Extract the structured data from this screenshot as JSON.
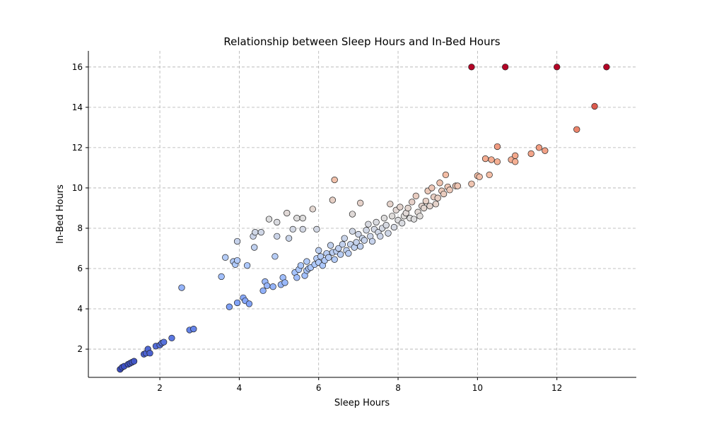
{
  "chart_data": {
    "type": "scatter",
    "title": "Relationship between Sleep Hours and In-Bed Hours",
    "xlabel": "Sleep Hours",
    "ylabel": "In-Bed Hours",
    "xlim": [
      0.2,
      14.0
    ],
    "ylim": [
      0.6,
      16.8
    ],
    "xticks": [
      2,
      4,
      6,
      8,
      10,
      12
    ],
    "yticks": [
      2,
      4,
      6,
      8,
      10,
      12,
      14,
      16
    ],
    "grid": true,
    "colormap": "coolwarm",
    "color_by": "y",
    "colormap_stops": [
      "#3b4cc0",
      "#6f92f3",
      "#aac7fd",
      "#dddcdc",
      "#f7b89c",
      "#e7745b",
      "#b40426"
    ],
    "points": [
      [
        1.0,
        1.0
      ],
      [
        1.05,
        1.1
      ],
      [
        1.1,
        1.15
      ],
      [
        1.2,
        1.25
      ],
      [
        1.25,
        1.3
      ],
      [
        1.3,
        1.35
      ],
      [
        1.35,
        1.4
      ],
      [
        1.6,
        1.75
      ],
      [
        1.65,
        1.8
      ],
      [
        1.7,
        2.0
      ],
      [
        1.75,
        1.8
      ],
      [
        1.9,
        2.15
      ],
      [
        2.0,
        2.2
      ],
      [
        2.05,
        2.3
      ],
      [
        2.1,
        2.35
      ],
      [
        2.3,
        2.55
      ],
      [
        2.55,
        5.05
      ],
      [
        2.75,
        2.95
      ],
      [
        2.85,
        3.0
      ],
      [
        3.55,
        5.6
      ],
      [
        3.65,
        6.55
      ],
      [
        3.75,
        4.1
      ],
      [
        3.85,
        6.35
      ],
      [
        3.9,
        6.2
      ],
      [
        3.95,
        7.35
      ],
      [
        3.95,
        6.4
      ],
      [
        3.95,
        4.3
      ],
      [
        4.1,
        4.55
      ],
      [
        4.15,
        4.4
      ],
      [
        4.2,
        6.15
      ],
      [
        4.25,
        4.25
      ],
      [
        4.35,
        7.6
      ],
      [
        4.38,
        7.05
      ],
      [
        4.4,
        7.8
      ],
      [
        4.55,
        7.8
      ],
      [
        4.6,
        4.9
      ],
      [
        4.65,
        5.35
      ],
      [
        4.7,
        5.15
      ],
      [
        4.75,
        8.45
      ],
      [
        4.85,
        5.1
      ],
      [
        4.9,
        6.6
      ],
      [
        4.95,
        8.3
      ],
      [
        4.95,
        7.6
      ],
      [
        5.05,
        5.2
      ],
      [
        5.1,
        5.55
      ],
      [
        5.15,
        5.3
      ],
      [
        5.2,
        8.75
      ],
      [
        5.25,
        7.5
      ],
      [
        5.35,
        7.95
      ],
      [
        5.4,
        5.8
      ],
      [
        5.45,
        5.55
      ],
      [
        5.45,
        8.5
      ],
      [
        5.5,
        5.95
      ],
      [
        5.55,
        6.15
      ],
      [
        5.6,
        8.5
      ],
      [
        5.6,
        7.95
      ],
      [
        5.65,
        5.65
      ],
      [
        5.7,
        5.9
      ],
      [
        5.7,
        6.35
      ],
      [
        5.75,
        6.0
      ],
      [
        5.8,
        6.05
      ],
      [
        5.85,
        8.95
      ],
      [
        5.9,
        6.2
      ],
      [
        5.95,
        6.5
      ],
      [
        5.95,
        7.95
      ],
      [
        6.0,
        6.9
      ],
      [
        6.0,
        6.3
      ],
      [
        6.05,
        6.6
      ],
      [
        6.1,
        6.15
      ],
      [
        6.15,
        6.4
      ],
      [
        6.2,
        6.75
      ],
      [
        6.25,
        6.55
      ],
      [
        6.3,
        7.15
      ],
      [
        6.35,
        9.4
      ],
      [
        6.35,
        6.8
      ],
      [
        6.4,
        10.4
      ],
      [
        6.4,
        6.45
      ],
      [
        6.45,
        6.85
      ],
      [
        6.5,
        7.0
      ],
      [
        6.55,
        6.7
      ],
      [
        6.6,
        7.2
      ],
      [
        6.65,
        7.5
      ],
      [
        6.7,
        6.9
      ],
      [
        6.75,
        6.75
      ],
      [
        6.8,
        7.2
      ],
      [
        6.85,
        7.85
      ],
      [
        6.85,
        8.7
      ],
      [
        6.9,
        7.05
      ],
      [
        6.95,
        7.3
      ],
      [
        7.0,
        7.7
      ],
      [
        7.05,
        9.25
      ],
      [
        7.05,
        7.1
      ],
      [
        7.1,
        7.5
      ],
      [
        7.15,
        7.4
      ],
      [
        7.2,
        7.9
      ],
      [
        7.25,
        8.2
      ],
      [
        7.3,
        7.6
      ],
      [
        7.35,
        7.35
      ],
      [
        7.4,
        7.95
      ],
      [
        7.45,
        8.3
      ],
      [
        7.5,
        7.8
      ],
      [
        7.55,
        7.6
      ],
      [
        7.6,
        8.0
      ],
      [
        7.65,
        8.5
      ],
      [
        7.7,
        8.15
      ],
      [
        7.75,
        7.75
      ],
      [
        7.8,
        9.2
      ],
      [
        7.85,
        8.6
      ],
      [
        7.9,
        8.05
      ],
      [
        7.95,
        8.9
      ],
      [
        8.0,
        8.4
      ],
      [
        8.05,
        9.05
      ],
      [
        8.1,
        8.25
      ],
      [
        8.15,
        8.6
      ],
      [
        8.2,
        8.75
      ],
      [
        8.25,
        9.0
      ],
      [
        8.3,
        8.5
      ],
      [
        8.35,
        9.3
      ],
      [
        8.4,
        8.45
      ],
      [
        8.45,
        9.6
      ],
      [
        8.5,
        8.8
      ],
      [
        8.55,
        8.6
      ],
      [
        8.6,
        9.1
      ],
      [
        8.65,
        9.0
      ],
      [
        8.7,
        9.35
      ],
      [
        8.75,
        9.85
      ],
      [
        8.8,
        9.1
      ],
      [
        8.85,
        10.0
      ],
      [
        8.9,
        9.55
      ],
      [
        8.95,
        9.2
      ],
      [
        9.0,
        9.5
      ],
      [
        9.05,
        10.25
      ],
      [
        9.1,
        9.85
      ],
      [
        9.15,
        9.7
      ],
      [
        9.2,
        10.65
      ],
      [
        9.25,
        10.05
      ],
      [
        9.3,
        9.9
      ],
      [
        9.45,
        10.1
      ],
      [
        9.5,
        10.1
      ],
      [
        9.85,
        10.2
      ],
      [
        10.0,
        10.6
      ],
      [
        10.05,
        10.55
      ],
      [
        10.2,
        11.45
      ],
      [
        10.3,
        10.65
      ],
      [
        10.35,
        11.4
      ],
      [
        10.5,
        12.05
      ],
      [
        10.5,
        11.3
      ],
      [
        10.85,
        11.4
      ],
      [
        10.95,
        11.6
      ],
      [
        10.95,
        11.3
      ],
      [
        11.35,
        11.7
      ],
      [
        11.55,
        12.0
      ],
      [
        11.7,
        11.85
      ],
      [
        12.5,
        12.9
      ],
      [
        12.95,
        14.05
      ],
      [
        9.85,
        16.0
      ],
      [
        10.7,
        16.0
      ],
      [
        12.0,
        16.0
      ],
      [
        13.25,
        16.0
      ]
    ]
  }
}
